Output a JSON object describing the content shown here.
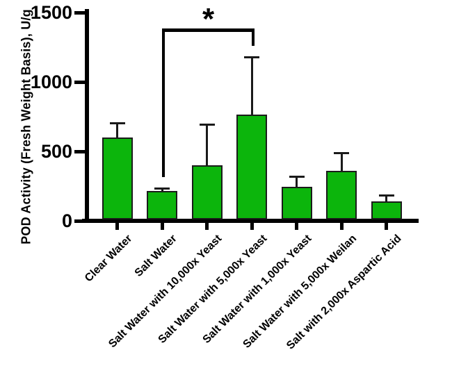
{
  "figure": {
    "background": "#ffffff",
    "bar_fill_color": "#0cb50c",
    "bar_border_color": "#1b1b1b",
    "axis_color": "#000000",
    "error_bar_color": "#1a1a1a",
    "text_color": "#000000"
  },
  "chart_data": {
    "type": "bar",
    "title": "",
    "xlabel": "",
    "ylabel": "POD Activity (Fresh Weight Basis), U/g",
    "ylim": [
      0,
      1500
    ],
    "yticks": [
      "0",
      "500",
      "1000",
      "1500"
    ],
    "ytick_values": [
      0,
      500,
      1000,
      1500
    ],
    "grid": false,
    "legend_position": "none",
    "categories": [
      "Clear Water",
      "Salt Water",
      "Salt Water with 10,000x Yeast",
      "Salt Water with 5,000x Yeast",
      "Salt Water with 1,000x Yeast",
      "Salt Water with 5,000x Weilan",
      "Salt with 2,000x Aspartic Acid"
    ],
    "values": [
      600,
      215,
      400,
      765,
      243,
      362,
      140
    ],
    "error_upper": [
      105,
      20,
      295,
      415,
      77,
      128,
      45
    ],
    "significance": {
      "label": "*",
      "from_index": 1,
      "to_index": 3,
      "from_category": "Salt Water",
      "to_category": "Salt Water with 5,000x Yeast"
    }
  }
}
